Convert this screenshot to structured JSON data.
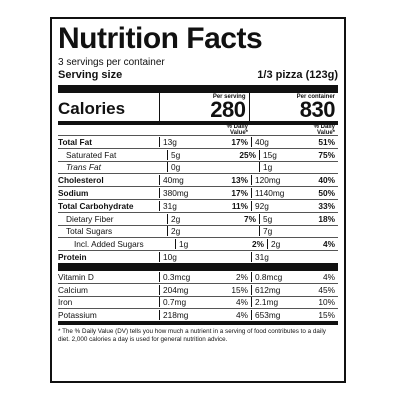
{
  "label": {
    "title": "Nutrition Facts",
    "servings": "3 servings per container",
    "serving_size_label": "Serving size",
    "serving_size_value": "1/3 pizza (123g)",
    "calories_label": "Calories",
    "per_serving_label": "Per serving",
    "per_container_label": "Per container",
    "calories_per_serving": "280",
    "calories_per_container": "830",
    "dv_header": "% Daily Value*"
  },
  "nutrients": [
    {
      "name": "Total Fat",
      "q1": "13g",
      "d1": "17%",
      "q2": "40g",
      "d2": "51%"
    },
    {
      "name": "Saturated Fat",
      "q1": "5g",
      "d1": "25%",
      "q2": "15g",
      "d2": "75%"
    },
    {
      "name": "Trans Fat",
      "q1": "0g",
      "d1": "",
      "q2": "1g",
      "d2": ""
    },
    {
      "name": "Cholesterol",
      "q1": "40mg",
      "d1": "13%",
      "q2": "120mg",
      "d2": "40%"
    },
    {
      "name": "Sodium",
      "q1": "380mg",
      "d1": "17%",
      "q2": "1140mg",
      "d2": "50%"
    },
    {
      "name": "Total Carbohydrate",
      "q1": "31g",
      "d1": "11%",
      "q2": "92g",
      "d2": "33%"
    },
    {
      "name": "Dietary Fiber",
      "q1": "2g",
      "d1": "7%",
      "q2": "5g",
      "d2": "18%"
    },
    {
      "name": "Total Sugars",
      "q1": "2g",
      "d1": "",
      "q2": "7g",
      "d2": ""
    },
    {
      "name": "Incl. Added Sugars",
      "q1": "1g",
      "d1": "2%",
      "q2": "2g",
      "d2": "4%"
    },
    {
      "name": "Protein",
      "q1": "10g",
      "d1": "",
      "q2": "31g",
      "d2": ""
    }
  ],
  "micros": [
    {
      "name": "Vitamin D",
      "q1": "0.3mcg",
      "d1": "2%",
      "q2": "0.8mcg",
      "d2": "4%"
    },
    {
      "name": "Calcium",
      "q1": "204mg",
      "d1": "15%",
      "q2": "612mg",
      "d2": "45%"
    },
    {
      "name": "Iron",
      "q1": "0.7mg",
      "d1": "4%",
      "q2": "2.1mg",
      "d2": "10%"
    },
    {
      "name": "Potassium",
      "q1": "218mg",
      "d1": "4%",
      "q2": "653mg",
      "d2": "15%"
    }
  ],
  "footnote": "* The % Daily Value (DV) tells you how much a nutrient in a serving of food contributes to a daily diet. 2,000 calories a day is used for general nutrition advice."
}
